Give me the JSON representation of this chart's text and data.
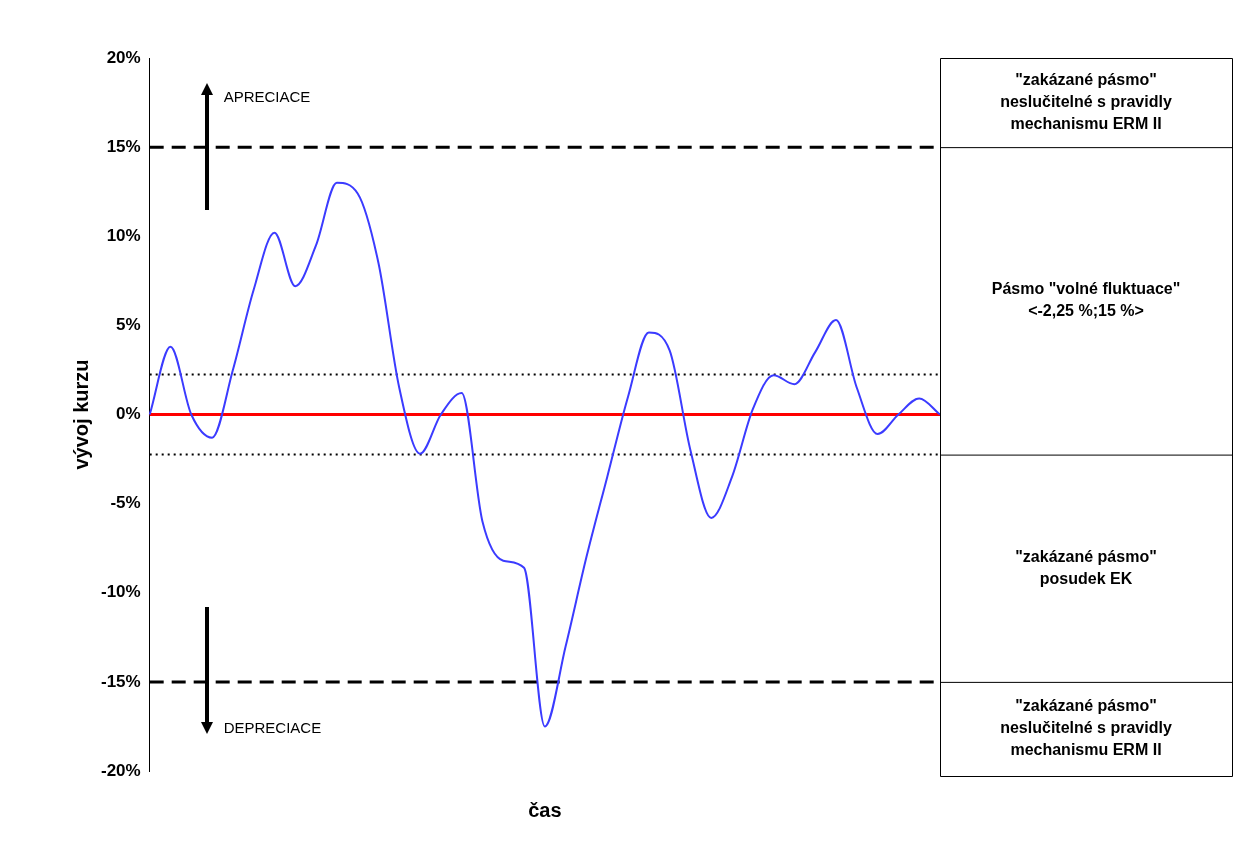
{
  "chart_data": {
    "type": "line",
    "xlabel": "čas",
    "ylabel": "vývoj kurzu",
    "categories": [
      null,
      null,
      null,
      null,
      null,
      null,
      null,
      null,
      null,
      null,
      null,
      null,
      null,
      null,
      null,
      null,
      null,
      null,
      null,
      null,
      null,
      null,
      null,
      null,
      null,
      null,
      null,
      null,
      null,
      null,
      null,
      null,
      null,
      null,
      null,
      null,
      null,
      null,
      null
    ],
    "series": [
      {
        "color": "#3b3bff",
        "values": [
          0,
          3.8,
          0,
          -1.3,
          2.5,
          7,
          10.2,
          7.2,
          9.5,
          13,
          12.4,
          8.5,
          1.5,
          -2.2,
          0,
          1.2,
          -6,
          -8.2,
          -8.6,
          -17.5,
          -13,
          -8,
          -3.5,
          1,
          4.6,
          3.6,
          -2,
          -5.8,
          -3.5,
          0.3,
          2.2,
          1.7,
          3.5,
          5.3,
          1.5,
          -1.1,
          0,
          0.9,
          0
        ]
      }
    ],
    "ylim": [
      -20,
      20
    ],
    "yticks": [
      {
        "value": -20,
        "label": "-20%"
      },
      {
        "value": -15,
        "label": "-15%"
      },
      {
        "value": -10,
        "label": "-10%"
      },
      {
        "value": -5,
        "label": "-5%"
      },
      {
        "value": 0,
        "label": "0%"
      },
      {
        "value": 5,
        "label": "5%"
      },
      {
        "value": 10,
        "label": "10%"
      },
      {
        "value": 15,
        "label": "15%"
      },
      {
        "value": 20,
        "label": "20%"
      }
    ],
    "ref_lines": [
      {
        "axis": "y",
        "value": 15,
        "color": "#000000",
        "line_style": "dashed"
      },
      {
        "axis": "y",
        "value": -2.25,
        "color": "#000000",
        "line_style": "dotted"
      },
      {
        "axis": "y",
        "value": -15,
        "color": "#000000",
        "line_style": "dashed"
      },
      {
        "axis": "y",
        "value": 2.25,
        "color": "#000000",
        "line_style": "dotted"
      },
      {
        "axis": "y",
        "value": 0,
        "color": "#ff0000",
        "line_style": "solid"
      }
    ],
    "annotations": [
      "APRECIACE",
      "DEPRECIACE",
      "\"zakázané pásmo\"\nneslučitelné s pravidly\nmechanismu ERM II",
      "Pásmo \"volné fluktuace\"\n<-2,25 %;15 %>",
      "\"zakázané pásmo\"\nposudek EK",
      "\"zakázané pásmo\"\nneslučitelné s pravidly\nmechanismu ERM II"
    ],
    "grid": false,
    "legend": false,
    "marker": "none",
    "line_style": "solid",
    "tick_labels": "y"
  }
}
